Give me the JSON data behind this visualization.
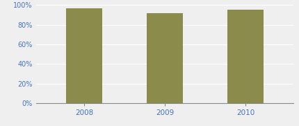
{
  "categories": [
    "2008",
    "2009",
    "2010"
  ],
  "values": [
    0.97,
    0.92,
    0.95
  ],
  "bar_color": "#8B8B4B",
  "ylim": [
    0,
    1.0
  ],
  "yticks": [
    0,
    0.2,
    0.4,
    0.6,
    0.8,
    1.0
  ],
  "background_color": "#EFEFEF",
  "grid_color": "#FFFFFF",
  "axis_color": "#888888",
  "tick_label_color": "#4472C4",
  "bar_width": 0.45,
  "tick_fontsize": 7,
  "xtick_fontsize": 7.5
}
